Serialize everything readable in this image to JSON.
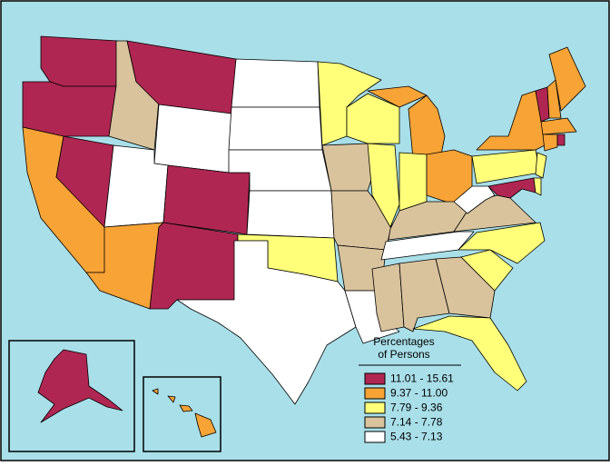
{
  "legend": {
    "title": [
      "Percentages",
      "of Persons"
    ],
    "items": [
      {
        "label": "11.01 - 15.61",
        "color": "#b02652"
      },
      {
        "label": "9.37 - 11.00",
        "color": "#f8a335"
      },
      {
        "label": "7.79 - 9.36",
        "color": "#ffff7a"
      },
      {
        "label": "7.14 - 7.78",
        "color": "#d9c39d"
      },
      {
        "label": "5.43 - 7.13",
        "color": "#ffffff"
      }
    ]
  }
}
